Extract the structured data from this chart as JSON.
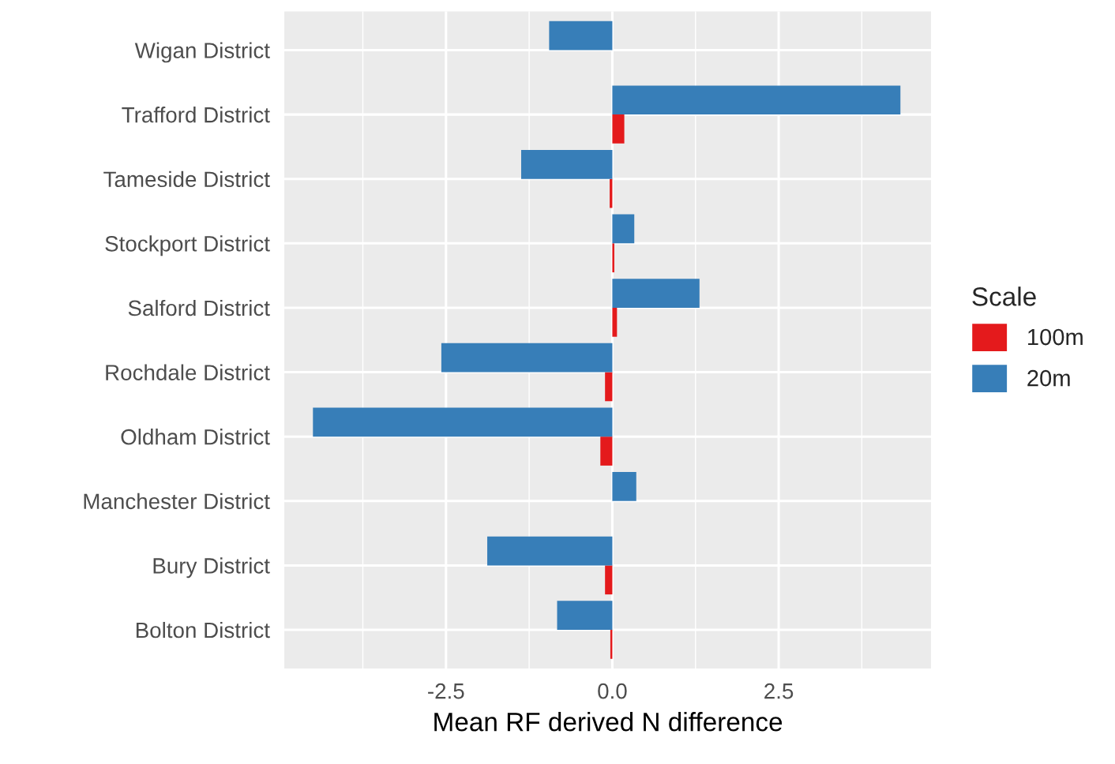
{
  "chart_data": {
    "type": "bar",
    "orientation": "horizontal",
    "xlabel": "Mean RF derived N difference",
    "legend_title": "Scale",
    "legend": "right",
    "categories": [
      "Wigan District",
      "Trafford District",
      "Tameside District",
      "Stockport District",
      "Salford District",
      "Rochdale District",
      "Oldham District",
      "Manchester District",
      "Bury District",
      "Bolton District"
    ],
    "series": [
      {
        "name": "100m",
        "color": "#e41a1c",
        "values": [
          null,
          0.18,
          -0.04,
          0.03,
          0.07,
          -0.11,
          -0.18,
          null,
          -0.11,
          -0.03
        ]
      },
      {
        "name": "20m",
        "color": "#377eb8",
        "values": [
          -0.95,
          4.33,
          -1.37,
          0.33,
          1.31,
          -2.57,
          -4.5,
          0.36,
          -1.88,
          -0.83
        ]
      }
    ],
    "xlim": [
      -4.93,
      4.79
    ],
    "xticks": [
      {
        "value": -2.5,
        "label": "-2.5"
      },
      {
        "value": 0,
        "label": "0.0"
      },
      {
        "value": 2.5,
        "label": "2.5"
      }
    ],
    "grid": true
  }
}
